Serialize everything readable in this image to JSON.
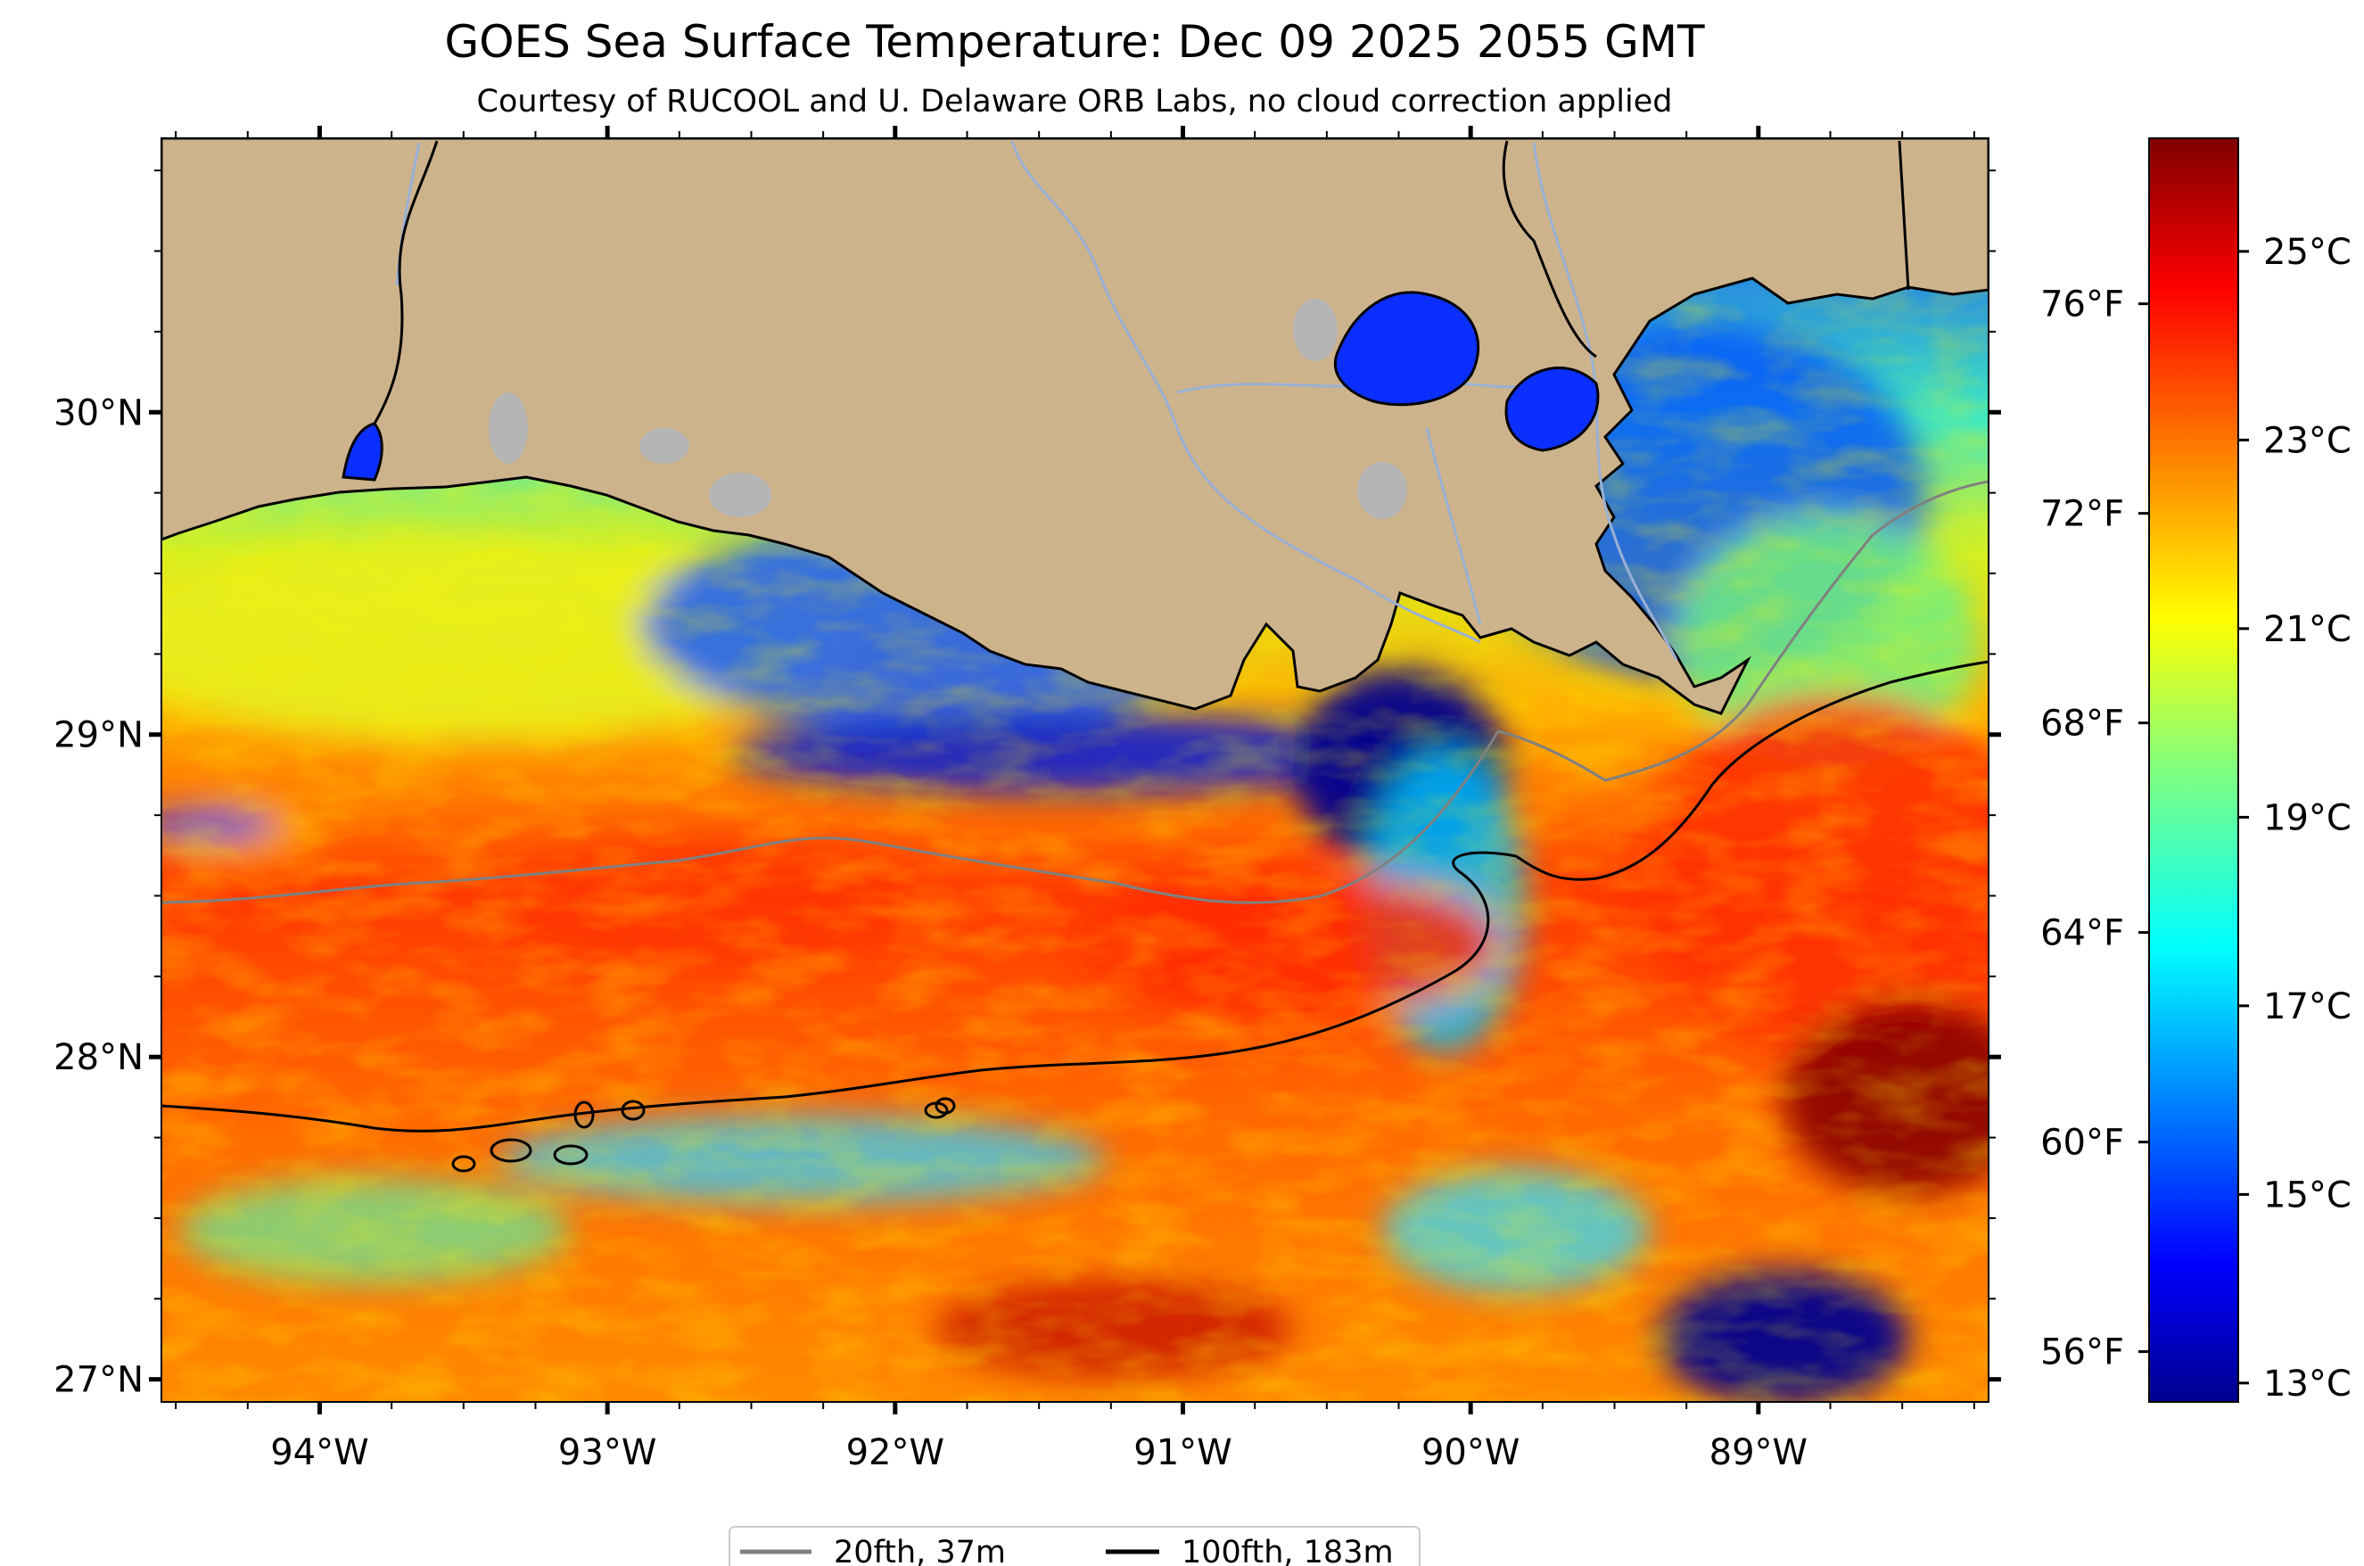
{
  "title": "GOES Sea Surface Temperature: Dec 09 2025 2055 GMT",
  "subtitle": "Courtesy of RUCOOL and U. Delaware ORB Labs, no cloud correction applied",
  "map": {
    "lon_range": [
      -94.55,
      -88.2
    ],
    "lat_range": [
      26.93,
      30.85
    ],
    "lon_ticks": [
      {
        "value": -94,
        "label": "94°W"
      },
      {
        "value": -93,
        "label": "93°W"
      },
      {
        "value": -92,
        "label": "92°W"
      },
      {
        "value": -91,
        "label": "91°W"
      },
      {
        "value": -90,
        "label": "90°W"
      },
      {
        "value": -89,
        "label": "89°W"
      }
    ],
    "lat_ticks": [
      {
        "value": 27,
        "label": "27°N"
      },
      {
        "value": 28,
        "label": "28°N"
      },
      {
        "value": 29,
        "label": "29°N"
      },
      {
        "value": 30,
        "label": "30°N"
      }
    ],
    "land_color": "#cdb38c",
    "lake_color": "#b4b4b4",
    "river_color": "#9ab0d4"
  },
  "colorbar": {
    "colormap": "jet",
    "range_c": [
      12.8,
      26.2
    ],
    "celsius_ticks": [
      {
        "value": 13,
        "label": "13°C"
      },
      {
        "value": 15,
        "label": "15°C"
      },
      {
        "value": 17,
        "label": "17°C"
      },
      {
        "value": 19,
        "label": "19°C"
      },
      {
        "value": 21,
        "label": "21°C"
      },
      {
        "value": 23,
        "label": "23°C"
      },
      {
        "value": 25,
        "label": "25°C"
      }
    ],
    "fahrenheit_ticks": [
      {
        "value": 56,
        "label": "56°F"
      },
      {
        "value": 60,
        "label": "60°F"
      },
      {
        "value": 64,
        "label": "64°F"
      },
      {
        "value": 68,
        "label": "68°F"
      },
      {
        "value": 72,
        "label": "72°F"
      },
      {
        "value": 76,
        "label": "76°F"
      }
    ]
  },
  "legend": {
    "items": [
      {
        "label": "20fth, 37m",
        "color": "#808080"
      },
      {
        "label": "100fth, 183m",
        "color": "#000000"
      }
    ]
  }
}
